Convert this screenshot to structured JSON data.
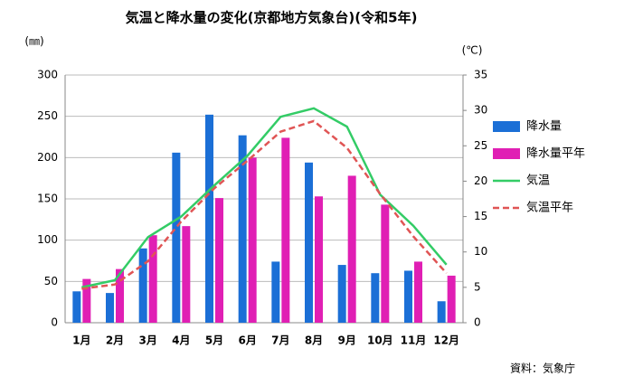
{
  "chart_data": {
    "type": "bar",
    "title": "気温と降水量の変化(京都地方気象台)(令和5年)",
    "y_label": "(㎜)",
    "y2_label": "(℃)",
    "source": "資料：気象庁",
    "categories": [
      "1月",
      "2月",
      "3月",
      "4月",
      "5月",
      "6月",
      "7月",
      "8月",
      "9月",
      "10月",
      "11月",
      "12月"
    ],
    "series": [
      {
        "name": "降水量",
        "type": "bar",
        "color": "#1b6fd6",
        "values": [
          38,
          36,
          90,
          206,
          252,
          227,
          74,
          194,
          70,
          60,
          63,
          26
        ]
      },
      {
        "name": "降水量平年",
        "type": "bar",
        "color": "#e01fb4",
        "values": [
          53,
          65,
          106,
          117,
          151,
          200,
          224,
          153,
          178,
          143,
          74,
          57
        ]
      },
      {
        "name": "気温",
        "type": "line",
        "axis": "y2",
        "color": "#33cc66",
        "line_style": "solid",
        "values": [
          5.0,
          6.0,
          12.1,
          15.0,
          19.4,
          23.6,
          29.1,
          30.3,
          27.7,
          18.1,
          13.7,
          8.2
        ]
      },
      {
        "name": "気温平年",
        "type": "line",
        "axis": "y2",
        "color": "#e05555",
        "line_style": "dashed",
        "values": [
          4.8,
          5.4,
          8.7,
          14.3,
          19.0,
          22.9,
          27.0,
          28.5,
          24.7,
          18.2,
          12.2,
          7.0
        ]
      }
    ],
    "ylim": [
      0,
      300
    ],
    "yticks": [
      0,
      50,
      100,
      150,
      200,
      250,
      300
    ],
    "y2lim": [
      0,
      35
    ],
    "y2ticks": [
      0,
      5,
      10,
      15,
      20,
      25,
      30,
      35
    ],
    "grid": true
  }
}
